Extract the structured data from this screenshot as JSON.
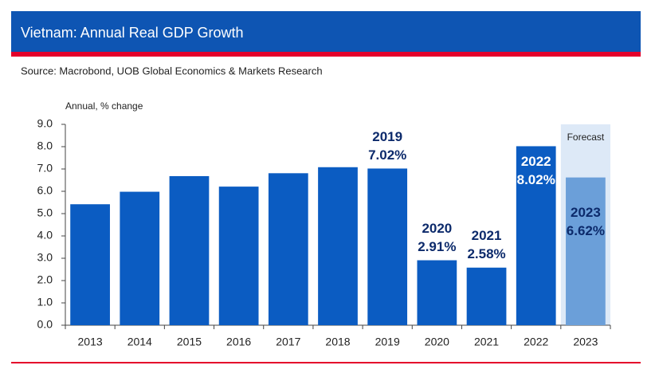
{
  "header": {
    "title": "Vietnam: Annual Real GDP Growth",
    "source": "Source: Macrobond, UOB Global Economics & Markets Research"
  },
  "chart_data": {
    "type": "bar",
    "y_axis_label": "Annual, % change",
    "categories": [
      "2013",
      "2014",
      "2015",
      "2016",
      "2017",
      "2018",
      "2019",
      "2020",
      "2021",
      "2022",
      "2023"
    ],
    "values": [
      5.42,
      5.98,
      6.68,
      6.21,
      6.81,
      7.08,
      7.02,
      2.91,
      2.58,
      8.02,
      6.62
    ],
    "value_labels": [
      null,
      null,
      null,
      null,
      null,
      null,
      "7.02%",
      "2.91%",
      "2.58%",
      "8.02%",
      "6.62%"
    ],
    "value_label_positions": [
      null,
      null,
      null,
      null,
      null,
      null,
      "above",
      "above",
      "above",
      "inside",
      "inside-low"
    ],
    "value_label_colors": [
      null,
      null,
      null,
      null,
      null,
      null,
      "#0c2a6b",
      "#0c2a6b",
      "#0c2a6b",
      "#ffffff",
      "#0c2a6b"
    ],
    "colors": [
      "#0b5cc2",
      "#0b5cc2",
      "#0b5cc2",
      "#0b5cc2",
      "#0b5cc2",
      "#0b5cc2",
      "#0b5cc2",
      "#0b5cc2",
      "#0b5cc2",
      "#0b5cc2",
      "#6b9fd9"
    ],
    "forecast": [
      false,
      false,
      false,
      false,
      false,
      false,
      false,
      false,
      false,
      false,
      true
    ],
    "forecast_label": "Forecast",
    "forecast_shade": "#dde9f7",
    "ylim": [
      0,
      9
    ],
    "yticks": [
      {
        "value": 0,
        "label": "0.0"
      },
      {
        "value": 1,
        "label": "1.0"
      },
      {
        "value": 2,
        "label": "2.0"
      },
      {
        "value": 3,
        "label": "3.0"
      },
      {
        "value": 4,
        "label": "4.0"
      },
      {
        "value": 5,
        "label": "5.0"
      },
      {
        "value": 6,
        "label": "6.0"
      },
      {
        "value": 7,
        "label": "7.0"
      },
      {
        "value": 8,
        "label": "8.0"
      },
      {
        "value": 9,
        "label": "9.0"
      }
    ],
    "grid": false
  }
}
